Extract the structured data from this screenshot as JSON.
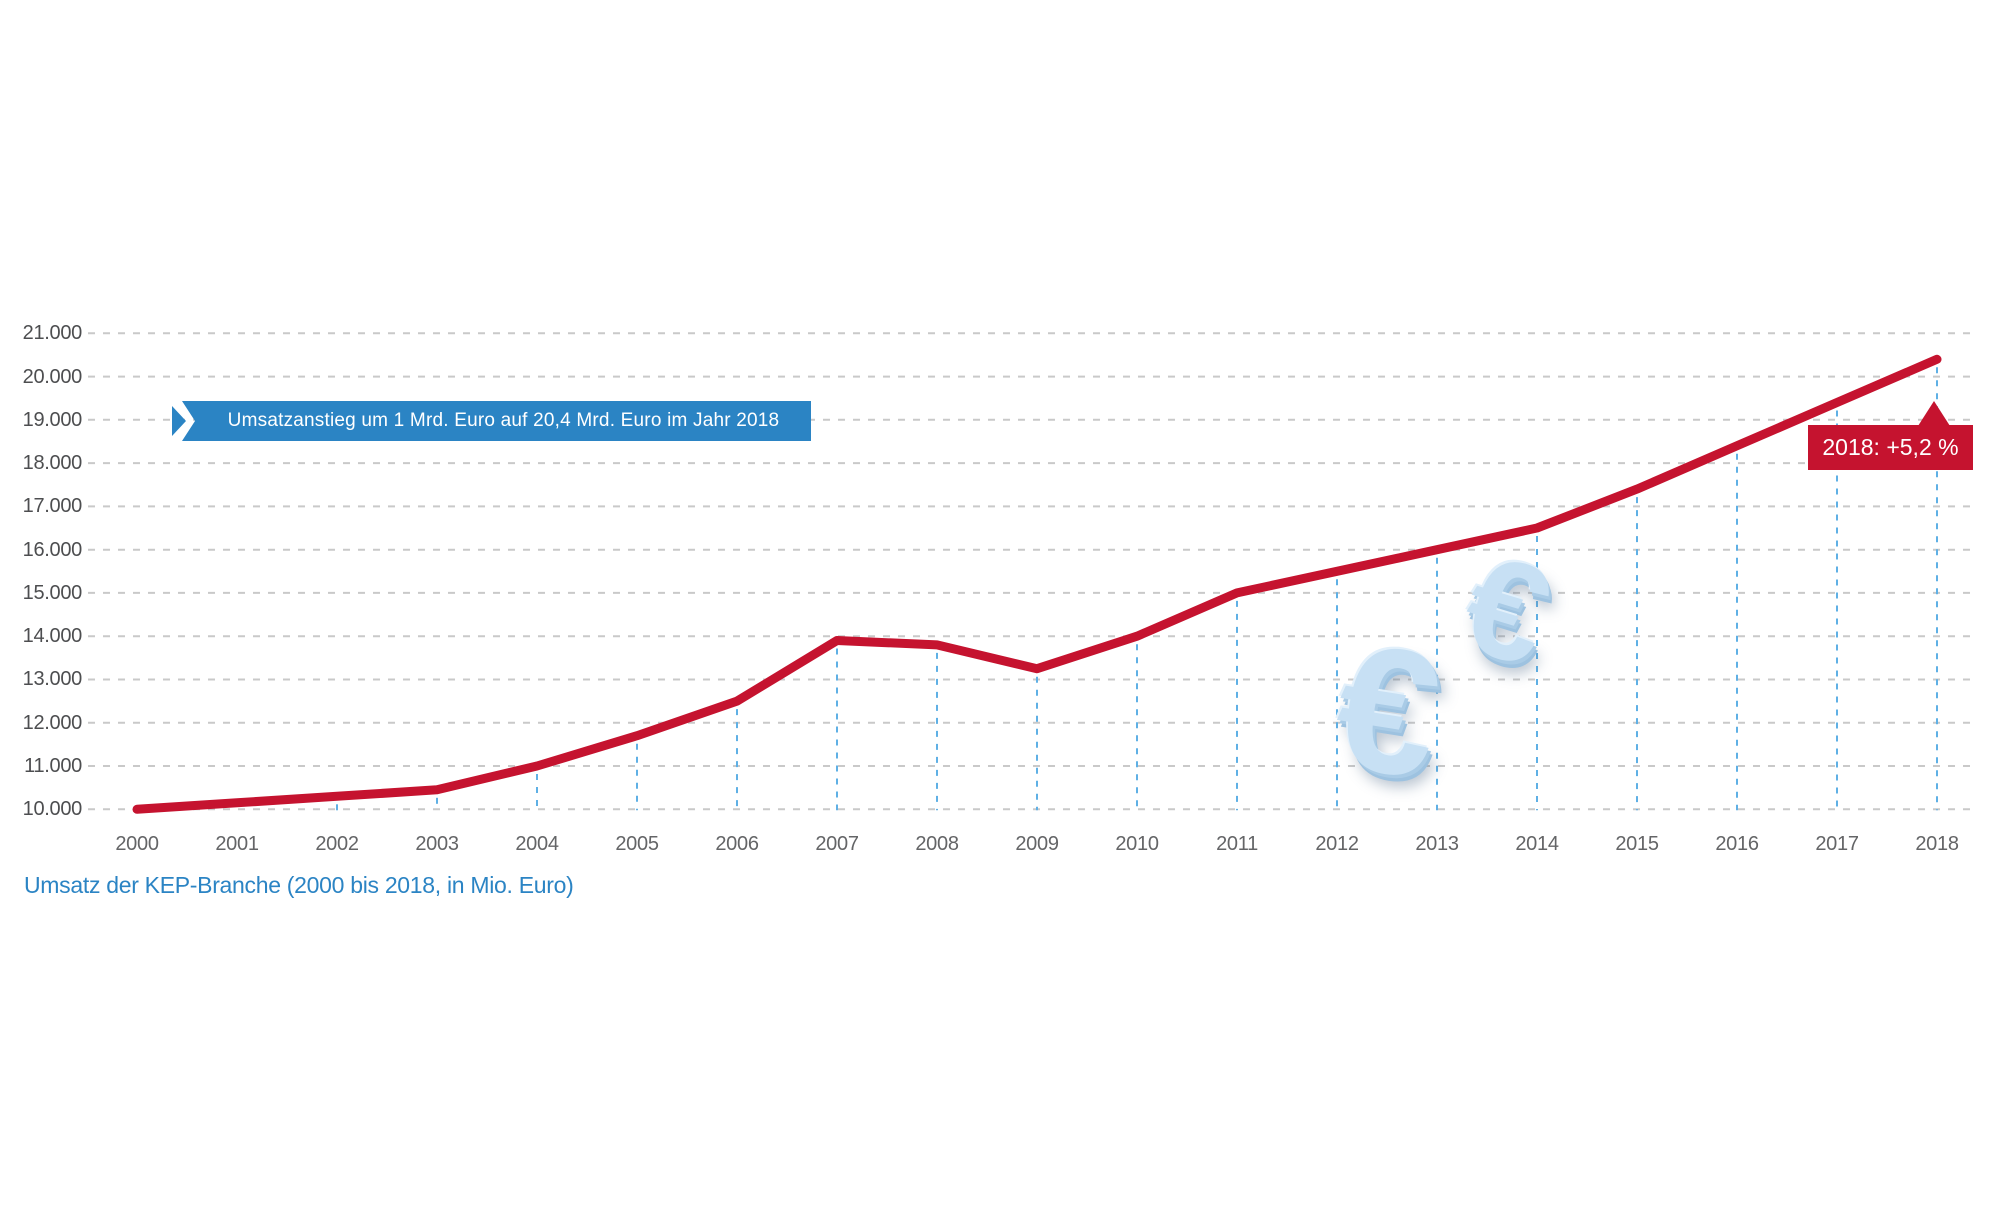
{
  "chart_data": {
    "type": "line",
    "title": "Umsatz der KEP-Branche (2000 bis 2018, in Mio. Euro)",
    "x": [
      2000,
      2001,
      2002,
      2003,
      2004,
      2005,
      2006,
      2007,
      2008,
      2009,
      2010,
      2011,
      2012,
      2013,
      2014,
      2015,
      2016,
      2017,
      2018
    ],
    "values": [
      10000,
      10150,
      10300,
      10450,
      11000,
      11700,
      12500,
      13900,
      13800,
      13250,
      14000,
      15000,
      15500,
      16000,
      16500,
      17400,
      18400,
      19400,
      20400
    ],
    "unit": "Mio. Euro",
    "ylim": [
      10000,
      21000
    ],
    "ytick_step": 1000,
    "ytick_labels": [
      "10.000",
      "11.000",
      "12.000",
      "13.000",
      "14.000",
      "15.000",
      "16.000",
      "17.000",
      "18.000",
      "19.000",
      "20.000",
      "21.000"
    ],
    "xtick_labels": [
      "2000",
      "2001",
      "2002",
      "2003",
      "2004",
      "2005",
      "2006",
      "2007",
      "2008",
      "2009",
      "2010",
      "2011",
      "2012",
      "2013",
      "2014",
      "2015",
      "2016",
      "2017",
      "2018"
    ],
    "grid": {
      "horizontal": "dashed",
      "vertical": "dashed year guides up to line"
    },
    "legend": "none",
    "annotations": {
      "ribbon": "Umsatzanstieg um 1 Mrd. Euro auf 20,4 Mrd. Euro im Jahr 2018",
      "badge": "2018: +5,2 %",
      "badge_points_to_year": "2018"
    }
  },
  "caption": "Umsatz der KEP-Branche (2000 bis 2018, in Mio. Euro)",
  "decoration": {
    "euro_symbol": "€"
  },
  "colors": {
    "line_red": "#c5132f",
    "badge_red": "#c5132f",
    "ribbon_blue": "#2b84c4",
    "caption_blue": "#2b84c4",
    "grid_gray": "#c9c9c9",
    "year_guide_blue": "#5fb0e5",
    "ytick_color": "#4d4e50",
    "xtick_color": "#646567",
    "euro_blue": "#c7e0f4"
  }
}
